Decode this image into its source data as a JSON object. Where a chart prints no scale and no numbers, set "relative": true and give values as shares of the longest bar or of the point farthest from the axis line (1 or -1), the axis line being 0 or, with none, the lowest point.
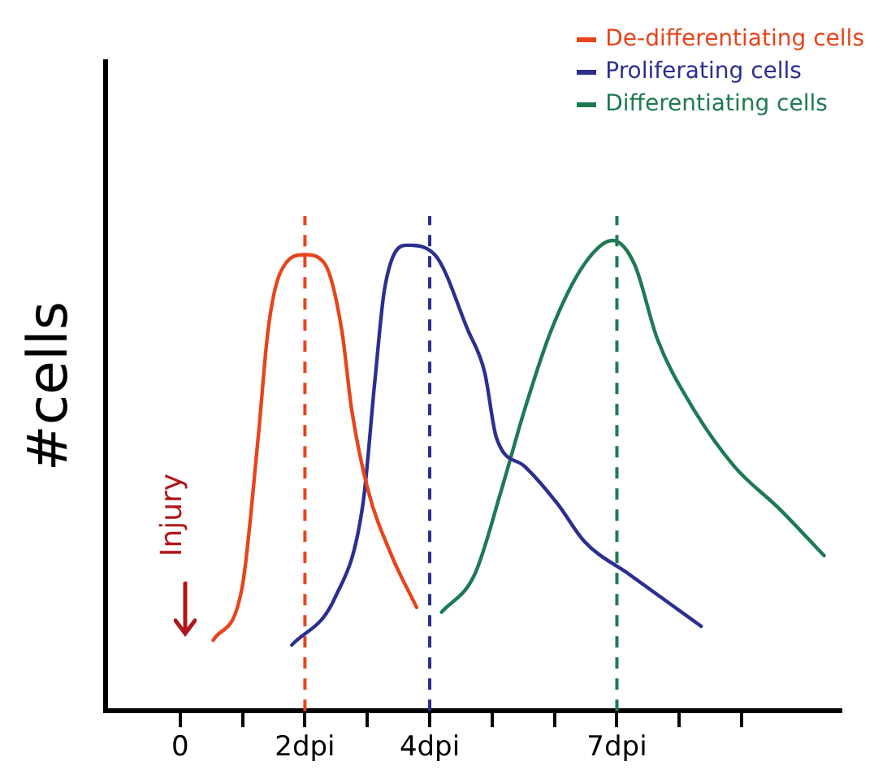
{
  "chart_data": {
    "type": "line",
    "relative": true,
    "ylabel": "#cells",
    "legend": "top right",
    "marker": "none",
    "line_style": "solid",
    "tick_labels": "x",
    "xlim": [
      -1.2,
      10.6
    ],
    "xticks": [
      {
        "value": 0,
        "label": "0"
      },
      {
        "value": 1,
        "label": null
      },
      {
        "value": 2,
        "label": "2dpi"
      },
      {
        "value": 3,
        "label": null
      },
      {
        "value": 4,
        "label": "4dpi"
      },
      {
        "value": 5,
        "label": null
      },
      {
        "value": 6,
        "label": null
      },
      {
        "value": 7,
        "label": "7dpi"
      },
      {
        "value": 8,
        "label": null
      },
      {
        "value": 9,
        "label": null
      }
    ],
    "series": [
      {
        "name": "De-differentiating cells",
        "color": "#e8441c",
        "x": [
          0.53,
          0.99,
          1.25,
          1.41,
          1.6,
          2.0,
          2.32,
          2.59,
          2.75,
          3.01,
          3.39,
          3.79
        ],
        "values": [
          0.15,
          0.26,
          0.58,
          0.81,
          0.93,
          0.97,
          0.95,
          0.81,
          0.64,
          0.47,
          0.33,
          0.22
        ]
      },
      {
        "name": "Proliferating cells",
        "color": "#2b2f8f",
        "x": [
          1.79,
          2.48,
          2.93,
          3.12,
          3.28,
          3.65,
          4.08,
          4.61,
          4.88,
          5.07,
          5.52,
          6.05,
          6.48,
          7.2,
          8.35
        ],
        "values": [
          0.14,
          0.24,
          0.44,
          0.7,
          0.9,
          0.99,
          0.97,
          0.81,
          0.72,
          0.58,
          0.52,
          0.44,
          0.36,
          0.29,
          0.18
        ]
      },
      {
        "name": "Differentiating cells",
        "color": "#1e7a52",
        "x": [
          4.19,
          4.72,
          5.15,
          5.52,
          5.95,
          6.48,
          6.93,
          7.28,
          7.65,
          8.19,
          8.88,
          9.6,
          10.32
        ],
        "values": [
          0.21,
          0.29,
          0.47,
          0.64,
          0.81,
          0.95,
          1.0,
          0.95,
          0.79,
          0.65,
          0.52,
          0.43,
          0.33
        ]
      }
    ],
    "ref_lines": [
      {
        "axis": "x",
        "value": 2,
        "color": "#e8441c",
        "line_style": "dashed"
      },
      {
        "axis": "x",
        "value": 4,
        "color": "#2b2f8f",
        "line_style": "dashed"
      },
      {
        "axis": "x",
        "value": 7,
        "color": "#1e7a52",
        "line_style": "dashed"
      }
    ],
    "annotations": [
      "Injury"
    ]
  }
}
